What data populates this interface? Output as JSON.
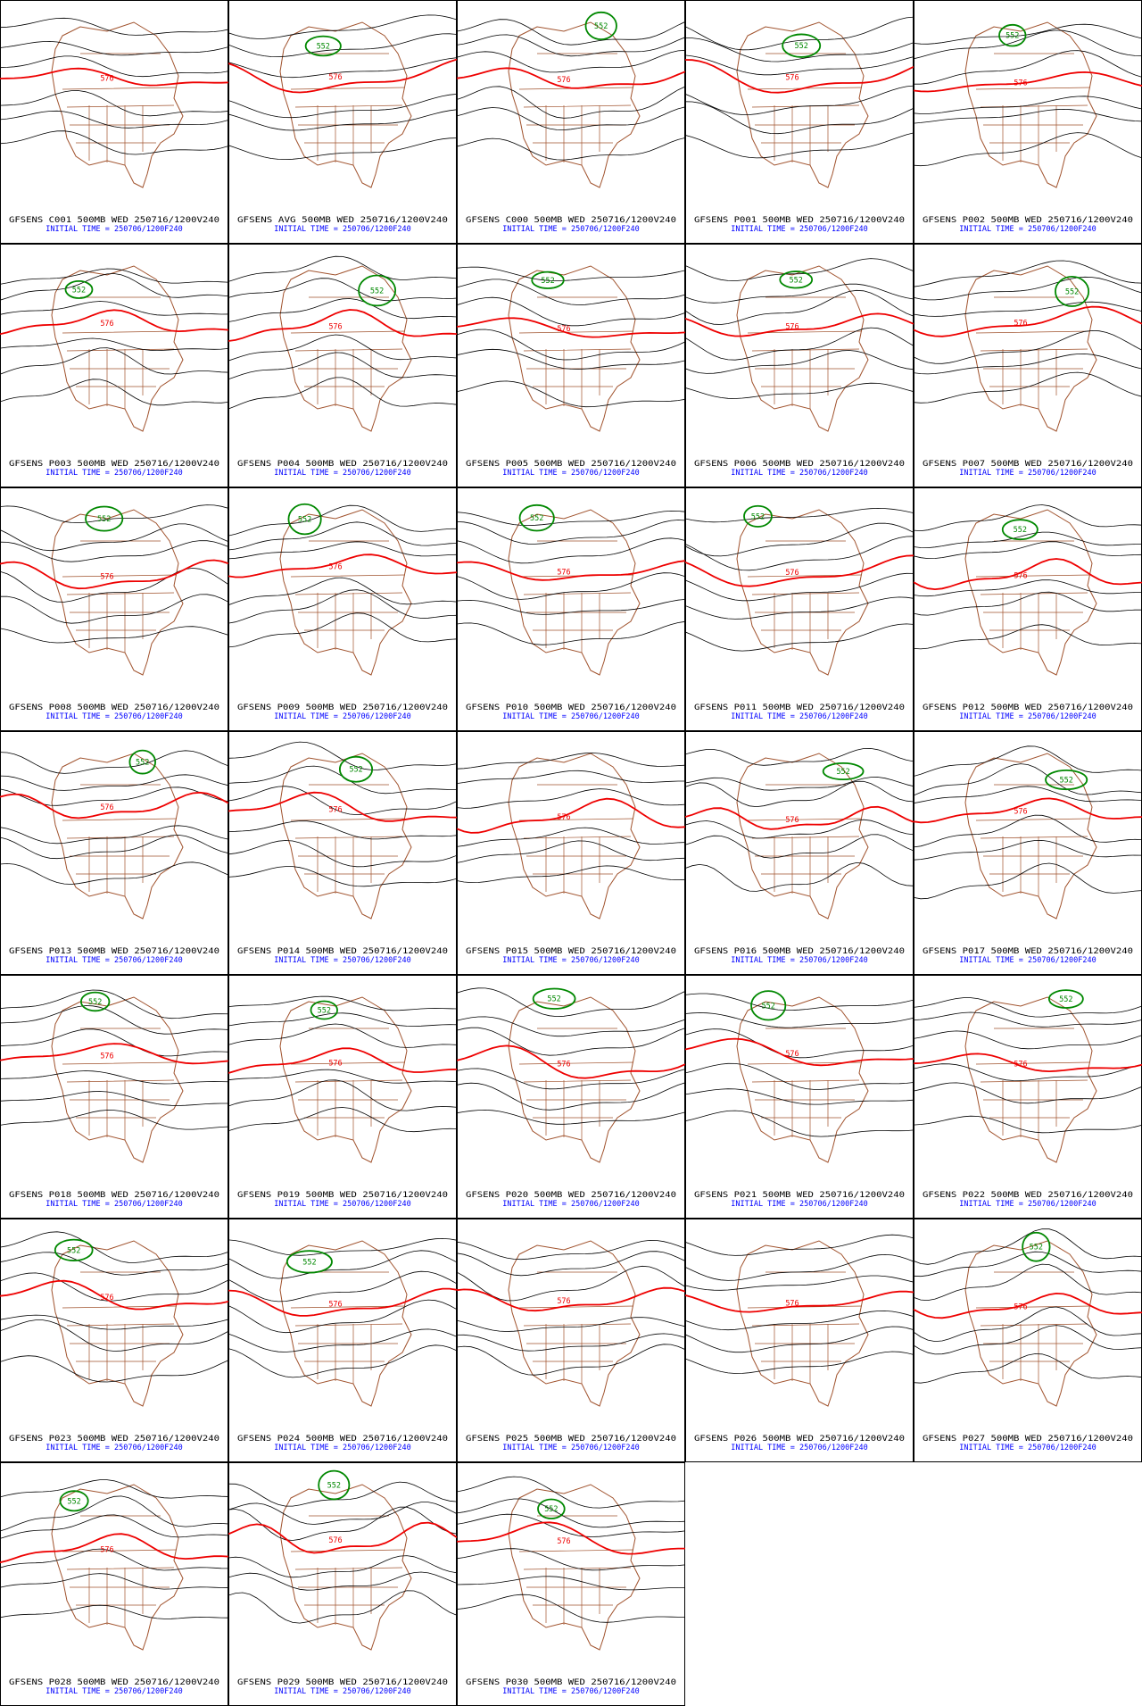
{
  "panels": [
    {
      "title": "GFSENS C001 500MB WED 250716/1200V240",
      "init": "INITIAL TIME = 250706/1200F240",
      "labels": [
        "576"
      ]
    },
    {
      "title": "GFSENS AVG 500MB WED 250716/1200V240",
      "init": "INITIAL TIME = 250706/1200F240",
      "labels": [
        "576",
        "552"
      ]
    },
    {
      "title": "GFSENS C000 500MB WED 250716/1200V240",
      "init": "INITIAL TIME = 250706/1200F240",
      "labels": [
        "576",
        "552"
      ]
    },
    {
      "title": "GFSENS P001 500MB WED 250716/1200V240",
      "init": "INITIAL TIME = 250706/1200F240",
      "labels": [
        "576",
        "552"
      ]
    },
    {
      "title": "GFSENS P002 500MB WED 250716/1200V240",
      "init": "INITIAL TIME = 250706/1200F240",
      "labels": [
        "576",
        "552"
      ]
    },
    {
      "title": "GFSENS P003 500MB WED 250716/1200V240",
      "init": "INITIAL TIME = 250706/1200F240",
      "labels": [
        "576",
        "552"
      ]
    },
    {
      "title": "GFSENS P004 500MB WED 250716/1200V240",
      "init": "INITIAL TIME = 250706/1200F240",
      "labels": [
        "576",
        "552"
      ]
    },
    {
      "title": "GFSENS P005 500MB WED 250716/1200V240",
      "init": "INITIAL TIME = 250706/1200F240",
      "labels": [
        "576",
        "552"
      ]
    },
    {
      "title": "GFSENS P006 500MB WED 250716/1200V240",
      "init": "INITIAL TIME = 250706/1200F240",
      "labels": [
        "576",
        "552"
      ]
    },
    {
      "title": "GFSENS P007 500MB WED 250716/1200V240",
      "init": "INITIAL TIME = 250706/1200F240",
      "labels": [
        "576",
        "552"
      ]
    },
    {
      "title": "GFSENS P008 500MB WED 250716/1200V240",
      "init": "INITIAL TIME = 250706/1200F240",
      "labels": [
        "576",
        "552"
      ]
    },
    {
      "title": "GFSENS P009 500MB WED 250716/1200V240",
      "init": "INITIAL TIME = 250706/1200F240",
      "labels": [
        "576",
        "552"
      ]
    },
    {
      "title": "GFSENS P010 500MB WED 250716/1200V240",
      "init": "INITIAL TIME = 250706/1200F240",
      "labels": [
        "576",
        "552"
      ]
    },
    {
      "title": "GFSENS P011 500MB WED 250716/1200V240",
      "init": "INITIAL TIME = 250706/1200F240",
      "labels": [
        "576",
        "552"
      ]
    },
    {
      "title": "GFSENS P012 500MB WED 250716/1200V240",
      "init": "INITIAL TIME = 250706/1200F240",
      "labels": [
        "576",
        "552"
      ]
    },
    {
      "title": "GFSENS P013 500MB WED 250716/1200V240",
      "init": "INITIAL TIME = 250706/1200F240",
      "labels": [
        "576",
        "552"
      ]
    },
    {
      "title": "GFSENS P014 500MB WED 250716/1200V240",
      "init": "INITIAL TIME = 250706/1200F240",
      "labels": [
        "576",
        "552"
      ]
    },
    {
      "title": "GFSENS P015 500MB WED 250716/1200V240",
      "init": "INITIAL TIME = 250706/1200F240",
      "labels": [
        "576"
      ]
    },
    {
      "title": "GFSENS P016 500MB WED 250716/1200V240",
      "init": "INITIAL TIME = 250706/1200F240",
      "labels": [
        "576",
        "552"
      ]
    },
    {
      "title": "GFSENS P017 500MB WED 250716/1200V240",
      "init": "INITIAL TIME = 250706/1200F240",
      "labels": [
        "576",
        "552"
      ]
    },
    {
      "title": "GFSENS P018 500MB WED 250716/1200V240",
      "init": "INITIAL TIME = 250706/1200F240",
      "labels": [
        "576",
        "552"
      ]
    },
    {
      "title": "GFSENS P019 500MB WED 250716/1200V240",
      "init": "INITIAL TIME = 250706/1200F240",
      "labels": [
        "576",
        "552"
      ]
    },
    {
      "title": "GFSENS P020 500MB WED 250716/1200V240",
      "init": "INITIAL TIME = 250706/1200F240",
      "labels": [
        "576",
        "552"
      ]
    },
    {
      "title": "GFSENS P021 500MB WED 250716/1200V240",
      "init": "INITIAL TIME = 250706/1200F240",
      "labels": [
        "576",
        "552"
      ]
    },
    {
      "title": "GFSENS P022 500MB WED 250716/1200V240",
      "init": "INITIAL TIME = 250706/1200F240",
      "labels": [
        "576",
        "552"
      ]
    },
    {
      "title": "GFSENS P023 500MB WED 250716/1200V240",
      "init": "INITIAL TIME = 250706/1200F240",
      "labels": [
        "576",
        "552"
      ]
    },
    {
      "title": "GFSENS P024 500MB WED 250716/1200V240",
      "init": "INITIAL TIME = 250706/1200F240",
      "labels": [
        "576",
        "552"
      ]
    },
    {
      "title": "GFSENS P025 500MB WED 250716/1200V240",
      "init": "INITIAL TIME = 250706/1200F240",
      "labels": [
        "576"
      ]
    },
    {
      "title": "GFSENS P026 500MB WED 250716/1200V240",
      "init": "INITIAL TIME = 250706/1200F240",
      "labels": [
        "576"
      ]
    },
    {
      "title": "GFSENS P027 500MB WED 250716/1200V240",
      "init": "INITIAL TIME = 250706/1200F240",
      "labels": [
        "576",
        "552"
      ]
    },
    {
      "title": "GFSENS P028 500MB WED 250716/1200V240",
      "init": "INITIAL TIME = 250706/1200F240",
      "labels": [
        "576",
        "552"
      ]
    },
    {
      "title": "GFSENS P029 500MB WED 250716/1200V240",
      "init": "INITIAL TIME = 250706/1200F240",
      "labels": [
        "576",
        "552"
      ]
    },
    {
      "title": "GFSENS P030 500MB WED 250716/1200V240",
      "init": "INITIAL TIME = 250706/1200F240",
      "labels": [
        "576",
        "552"
      ]
    }
  ]
}
